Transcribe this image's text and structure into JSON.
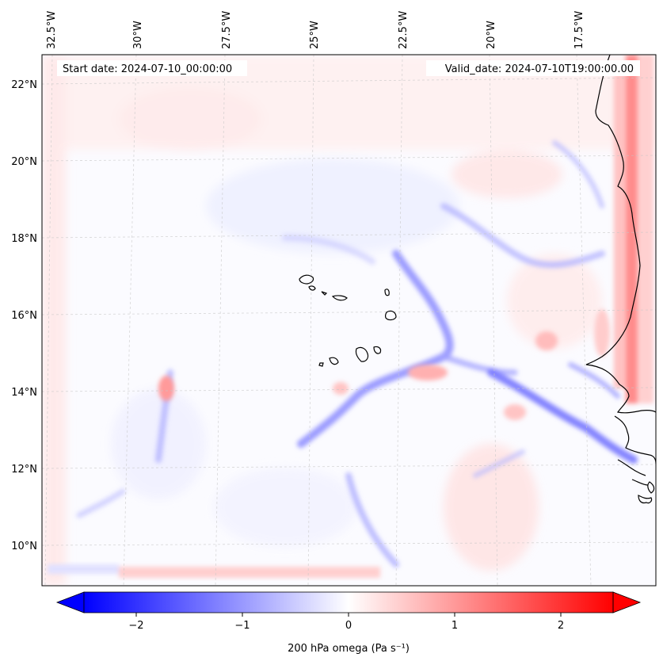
{
  "map": {
    "start_date_label": "Start date: 2024-07-10_00:00:00",
    "valid_date_label": "Valid_date: 2024-07-10T19:00:00.00",
    "lon_labels": [
      "32.5°W",
      "30°W",
      "27.5°W",
      "25°W",
      "22.5°W",
      "20°W",
      "17.5°W"
    ],
    "lat_labels": [
      "22°N",
      "20°N",
      "18°N",
      "16°N",
      "14°N",
      "12°N",
      "10°N"
    ],
    "lon_extent": [
      -33.0,
      -15.0
    ],
    "lat_extent": [
      8.8,
      22.8
    ],
    "field": "200 hPa omega",
    "colormap": "bwr"
  },
  "colorbar": {
    "label": "200 hPa omega (Pa s⁻¹)",
    "ticks": [
      "−2",
      "−1",
      "0",
      "1",
      "2"
    ],
    "tick_values": [
      -2,
      -1,
      0,
      1,
      2
    ],
    "range": [
      -2.6,
      2.6
    ],
    "colors": {
      "min": "#0000ff",
      "mid": "#ffffff",
      "max": "#ff0000"
    }
  }
}
